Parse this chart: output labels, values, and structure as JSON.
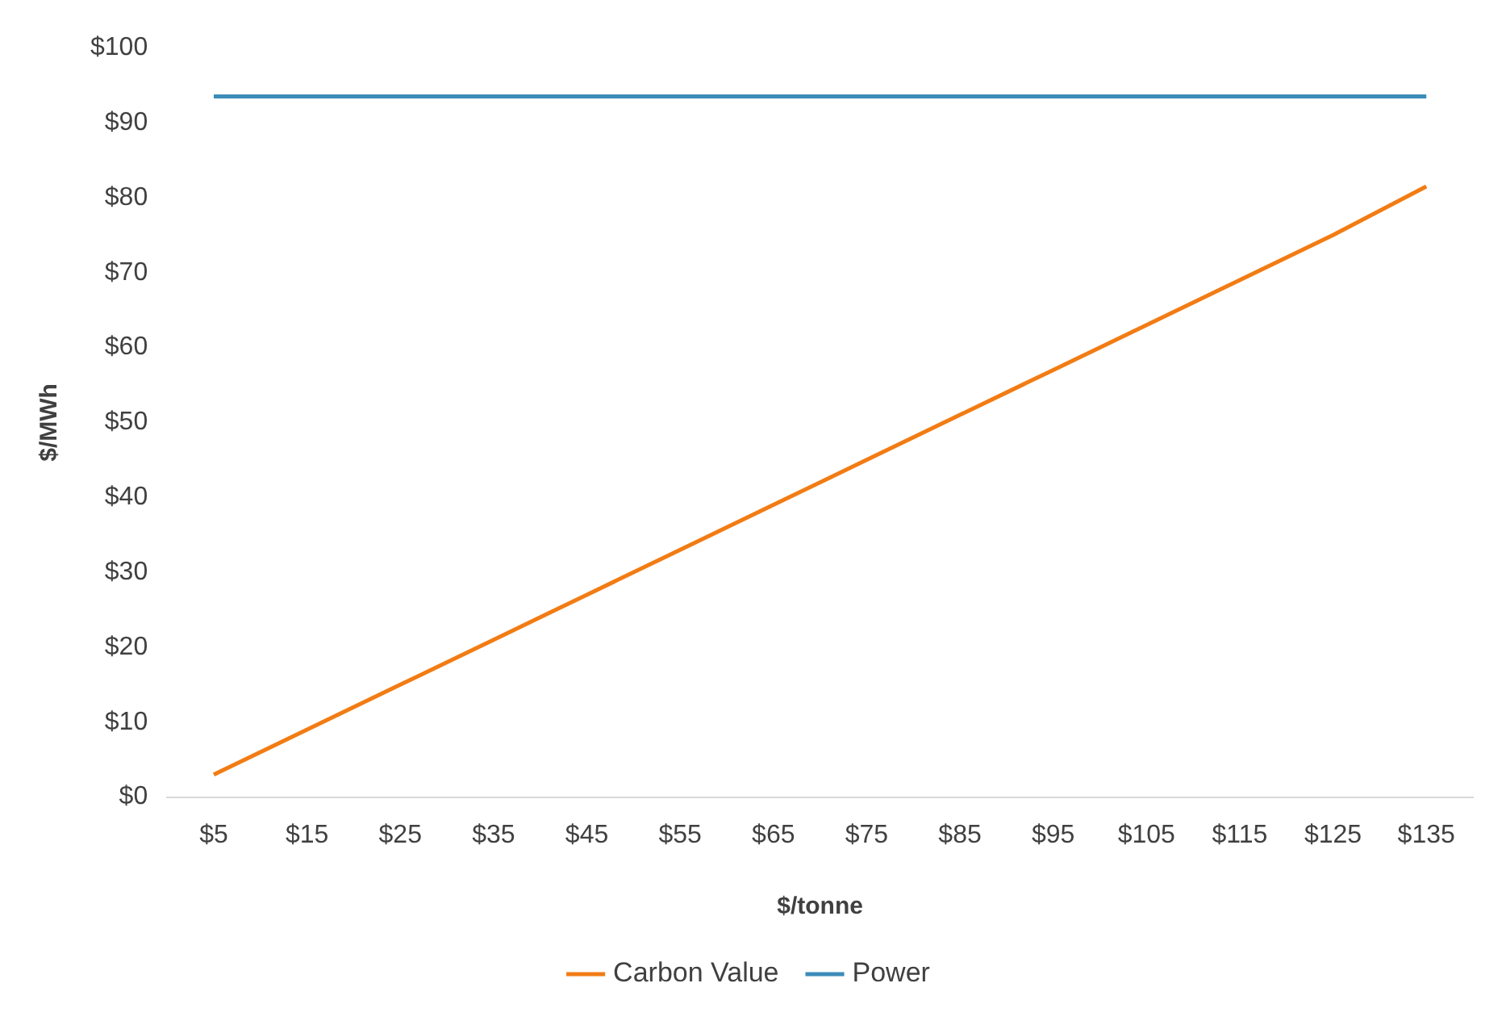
{
  "chart_data": {
    "type": "line",
    "xlabel": "$/tonne",
    "ylabel": "$/MWh",
    "categories": [
      "$5",
      "$15",
      "$25",
      "$35",
      "$45",
      "$55",
      "$65",
      "$75",
      "$85",
      "$95",
      "$105",
      "$115",
      "$125",
      "$135"
    ],
    "series": [
      {
        "name": "Carbon Value",
        "color": "#f27c14",
        "values": [
          3,
          9,
          15,
          21,
          27,
          33,
          39,
          45,
          51,
          57,
          63,
          69,
          75,
          81.5
        ]
      },
      {
        "name": "Power",
        "color": "#3c8cb8",
        "values": [
          93.5,
          93.5,
          93.5,
          93.5,
          93.5,
          93.5,
          93.5,
          93.5,
          93.5,
          93.5,
          93.5,
          93.5,
          93.5,
          93.5
        ]
      }
    ],
    "ylim": [
      0,
      100
    ],
    "yticks": [
      {
        "value": 0,
        "label": "$0"
      },
      {
        "value": 10,
        "label": "$10"
      },
      {
        "value": 20,
        "label": "$20"
      },
      {
        "value": 30,
        "label": "$30"
      },
      {
        "value": 40,
        "label": "$40"
      },
      {
        "value": 50,
        "label": "$50"
      },
      {
        "value": 60,
        "label": "$60"
      },
      {
        "value": 70,
        "label": "$70"
      },
      {
        "value": 80,
        "label": "$80"
      },
      {
        "value": 90,
        "label": "$90"
      },
      {
        "value": 100,
        "label": "$100"
      }
    ],
    "grid": false,
    "legend": "bottom",
    "marker": "none",
    "line_style": "solid"
  }
}
